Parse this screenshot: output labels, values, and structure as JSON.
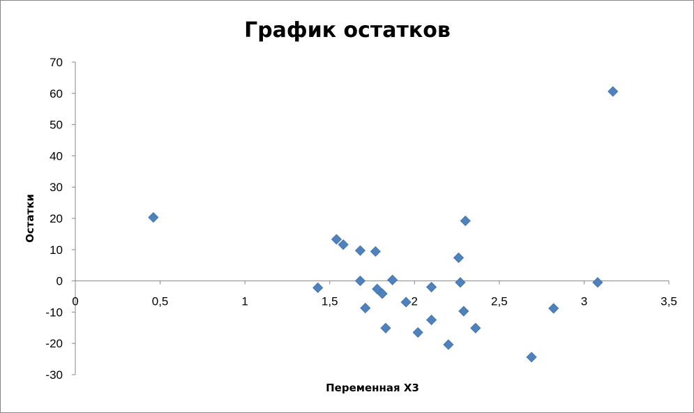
{
  "chart_data": {
    "type": "scatter",
    "title": "График остатков",
    "xlabel": "Переменная X3",
    "ylabel": "Остатки",
    "xlim": [
      0,
      3.5
    ],
    "ylim": [
      -30,
      70
    ],
    "x_ticks": [
      "0",
      "0,5",
      "1",
      "1,5",
      "2",
      "2,5",
      "3",
      "3,5"
    ],
    "x_tick_values": [
      0,
      0.5,
      1,
      1.5,
      2,
      2.5,
      3,
      3.5
    ],
    "y_ticks": [
      "70",
      "60",
      "50",
      "40",
      "30",
      "20",
      "10",
      "0",
      "-10",
      "-20",
      "-30"
    ],
    "y_tick_values": [
      70,
      60,
      50,
      40,
      30,
      20,
      10,
      0,
      -10,
      -20,
      -30
    ],
    "grid": false,
    "legend": "none",
    "marker": "diamond",
    "marker_color": "#4F81BD",
    "series": [
      {
        "points": [
          {
            "x": 0.46,
            "y": 20.3
          },
          {
            "x": 1.43,
            "y": -2.2
          },
          {
            "x": 1.54,
            "y": 13.3
          },
          {
            "x": 1.58,
            "y": 11.6
          },
          {
            "x": 1.68,
            "y": 9.7
          },
          {
            "x": 1.68,
            "y": 0.0
          },
          {
            "x": 1.71,
            "y": -8.7
          },
          {
            "x": 1.77,
            "y": 9.4
          },
          {
            "x": 1.78,
            "y": -2.6
          },
          {
            "x": 1.81,
            "y": -4.1
          },
          {
            "x": 1.83,
            "y": -15.1
          },
          {
            "x": 1.87,
            "y": 0.3
          },
          {
            "x": 1.95,
            "y": -6.8
          },
          {
            "x": 2.02,
            "y": -16.5
          },
          {
            "x": 2.1,
            "y": -2.0
          },
          {
            "x": 2.1,
            "y": -12.5
          },
          {
            "x": 2.2,
            "y": -20.4
          },
          {
            "x": 2.26,
            "y": 7.4
          },
          {
            "x": 2.27,
            "y": -0.5
          },
          {
            "x": 2.29,
            "y": -9.7
          },
          {
            "x": 2.3,
            "y": 19.2
          },
          {
            "x": 2.36,
            "y": -15.1
          },
          {
            "x": 2.69,
            "y": -24.4
          },
          {
            "x": 2.82,
            "y": -8.8
          },
          {
            "x": 3.08,
            "y": -0.5
          },
          {
            "x": 3.17,
            "y": 60.6
          }
        ]
      }
    ]
  }
}
